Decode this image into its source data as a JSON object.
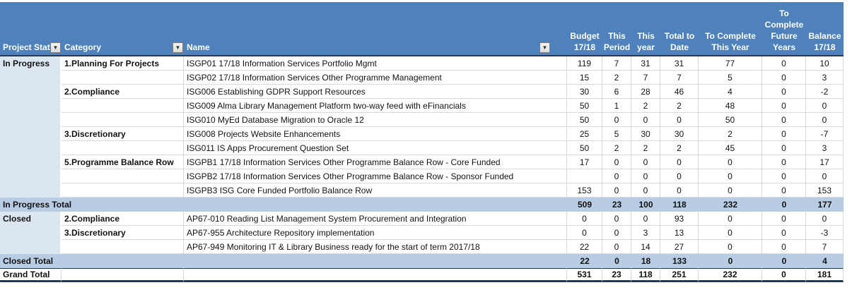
{
  "colors": {
    "header_bg": "#4f81bd",
    "header_text": "#ffffff",
    "subtotal_bg": "#b8cce4",
    "status_col_bg": "#dce6f1",
    "grid": "#d9d9d9",
    "dark_border": "#1f3a5d"
  },
  "table": {
    "columns": [
      {
        "id": "project-status",
        "label": "Project Stat",
        "type": "text",
        "has_filter": true
      },
      {
        "id": "category",
        "label": "Category",
        "type": "text",
        "has_filter": true
      },
      {
        "id": "name",
        "label": "Name",
        "type": "text",
        "has_filter": true
      },
      {
        "id": "budget-17-18",
        "label": "Budget\n17/18",
        "type": "num"
      },
      {
        "id": "this-period",
        "label": "This\nPeriod",
        "type": "num"
      },
      {
        "id": "this-year",
        "label": "This\nyear",
        "type": "num"
      },
      {
        "id": "total-to-date",
        "label": "Total to\nDate",
        "type": "num"
      },
      {
        "id": "to-complete-this-year",
        "label": "To Complete\nThis Year",
        "type": "num"
      },
      {
        "id": "to-complete-future-years",
        "label": "To\nComplete\nFuture\nYears",
        "type": "num"
      },
      {
        "id": "balance-17-18",
        "label": "Balance\n17/18",
        "type": "num"
      }
    ],
    "rows": [
      {
        "type": "data",
        "status": "In Progress",
        "category": "1.Planning For Projects",
        "name": "ISGP01 17/18 Information Services Portfolio Mgmt",
        "values": [
          "119",
          "7",
          "31",
          "31",
          "77",
          "0",
          "10"
        ]
      },
      {
        "type": "data",
        "status": "",
        "category": "",
        "name": "ISGP02 17/18 Information Services Other Programme Management",
        "values": [
          "15",
          "2",
          "7",
          "7",
          "5",
          "0",
          "3"
        ]
      },
      {
        "type": "data",
        "status": "",
        "category": "2.Compliance",
        "name": "ISG006 Establishing GDPR Support Resources",
        "values": [
          "30",
          "6",
          "28",
          "46",
          "4",
          "0",
          "-2"
        ]
      },
      {
        "type": "data",
        "status": "",
        "category": "",
        "name": "ISG009 Alma Library Management Platform two-way feed with eFinancials",
        "values": [
          "50",
          "1",
          "2",
          "2",
          "48",
          "0",
          "0"
        ]
      },
      {
        "type": "data",
        "status": "",
        "category": "",
        "name": "ISG010 MyEd Database Migration to Oracle 12",
        "values": [
          "50",
          "0",
          "0",
          "0",
          "50",
          "0",
          "0"
        ]
      },
      {
        "type": "data",
        "status": "",
        "category": "3.Discretionary",
        "name": "ISG008 Projects Website Enhancements",
        "values": [
          "25",
          "5",
          "30",
          "30",
          "2",
          "0",
          "-7"
        ]
      },
      {
        "type": "data",
        "status": "",
        "category": "",
        "name": "ISG011 IS Apps Procurement Question Set",
        "values": [
          "50",
          "2",
          "2",
          "2",
          "45",
          "0",
          "3"
        ]
      },
      {
        "type": "data",
        "status": "",
        "category": "5.Programme Balance Row",
        "name": "ISGPB1 17/18 Information Services Other Programme Balance Row - Core Funded",
        "values": [
          "17",
          "0",
          "0",
          "0",
          "0",
          "0",
          "17"
        ]
      },
      {
        "type": "data",
        "status": "",
        "category": "",
        "name": "ISGPB2 17/18 Information Services Other Programme Balance Row - Sponsor Funded",
        "values": [
          "",
          "0",
          "0",
          "0",
          "0",
          "0",
          "0"
        ]
      },
      {
        "type": "data",
        "status": "",
        "category": "",
        "name": "ISGPB3 ISG Core Funded Portfolio Balance Row",
        "values": [
          "153",
          "0",
          "0",
          "0",
          "0",
          "0",
          "153"
        ]
      },
      {
        "type": "subtotal",
        "label": "In Progress Total",
        "values": [
          "509",
          "23",
          "100",
          "118",
          "232",
          "0",
          "177"
        ]
      },
      {
        "type": "data",
        "status": "Closed",
        "category": "2.Compliance",
        "name": "AP67-010 Reading List Management System Procurement and Integration",
        "values": [
          "0",
          "0",
          "0",
          "93",
          "0",
          "0",
          "0"
        ]
      },
      {
        "type": "data",
        "status": "",
        "category": "3.Discretionary",
        "name": "AP67-955 Architecture Repository implementation",
        "values": [
          "0",
          "0",
          "3",
          "13",
          "0",
          "0",
          "-3"
        ]
      },
      {
        "type": "data",
        "status": "",
        "category": "",
        "name": "AP67-949 Monitoring IT & Library Business ready for the start of term 2017/18",
        "values": [
          "22",
          "0",
          "14",
          "27",
          "0",
          "0",
          "7"
        ]
      },
      {
        "type": "subtotal",
        "label": "Closed Total",
        "values": [
          "22",
          "0",
          "18",
          "133",
          "0",
          "0",
          "4"
        ]
      },
      {
        "type": "grand",
        "label": "Grand Total",
        "values": [
          "531",
          "23",
          "118",
          "251",
          "232",
          "0",
          "181"
        ]
      }
    ]
  }
}
